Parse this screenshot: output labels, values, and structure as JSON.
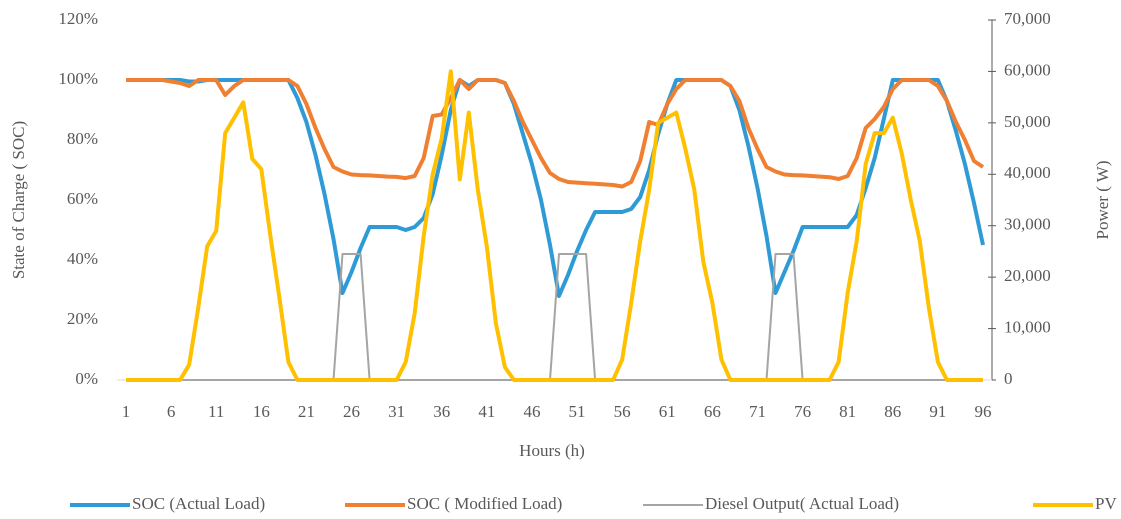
{
  "chart_data": {
    "type": "line",
    "x_label": "Hours (h)",
    "y_label": "State of  Charge ( SOC)",
    "y2_label": "Power ( W)",
    "x": [
      1,
      2,
      3,
      4,
      5,
      6,
      7,
      8,
      9,
      10,
      11,
      12,
      13,
      14,
      15,
      16,
      17,
      18,
      19,
      20,
      21,
      22,
      23,
      24,
      25,
      26,
      27,
      28,
      29,
      30,
      31,
      32,
      33,
      34,
      35,
      36,
      37,
      38,
      39,
      40,
      41,
      42,
      43,
      44,
      45,
      46,
      47,
      48,
      49,
      50,
      51,
      52,
      53,
      54,
      55,
      56,
      57,
      58,
      59,
      60,
      61,
      62,
      63,
      64,
      65,
      66,
      67,
      68,
      69,
      70,
      71,
      72,
      73,
      74,
      75,
      76,
      77,
      78,
      79,
      80,
      81,
      82,
      83,
      84,
      85,
      86,
      87,
      88,
      89,
      90,
      91,
      92,
      93,
      94,
      95,
      96
    ],
    "xlim": [
      0,
      97
    ],
    "xticks": [
      1,
      6,
      11,
      16,
      21,
      26,
      31,
      36,
      41,
      46,
      51,
      56,
      61,
      66,
      71,
      76,
      81,
      86,
      91,
      96
    ],
    "ylim": [
      0,
      120
    ],
    "yticks": [
      {
        "value": 0,
        "label": "0%"
      },
      {
        "value": 20,
        "label": "20%"
      },
      {
        "value": 40,
        "label": "40%"
      },
      {
        "value": 60,
        "label": "60%"
      },
      {
        "value": 80,
        "label": "80%"
      },
      {
        "value": 100,
        "label": "100%"
      },
      {
        "value": 120,
        "label": "120%"
      }
    ],
    "y2lim": [
      0,
      70000
    ],
    "y2ticks": [
      0,
      {
        "value": 10000,
        "label": "10,000"
      },
      {
        "value": 20000,
        "label": "20,000"
      },
      {
        "value": 30000,
        "label": "30,000"
      },
      {
        "value": 40000,
        "label": "40,000"
      },
      {
        "value": 50000,
        "label": "50,000"
      },
      {
        "value": 60000,
        "label": "60,000"
      },
      {
        "value": 70000,
        "label": "70,000"
      }
    ],
    "grid": false,
    "legend": "bottom",
    "series": [
      {
        "name": "SOC (Actual Load)",
        "color": "#2e9bd6",
        "axis": "y",
        "values": [
          100,
          100,
          100,
          100,
          100,
          100,
          100,
          99.5,
          99.5,
          100,
          100,
          100,
          100,
          100,
          100,
          100,
          100,
          100,
          100,
          94,
          86,
          75,
          62,
          47,
          29,
          36,
          44,
          51,
          51,
          51,
          51,
          50,
          51,
          54,
          62,
          75,
          90,
          100,
          98,
          100,
          100,
          100,
          99,
          92,
          82,
          72,
          60,
          45,
          28,
          35,
          43,
          50,
          56,
          56,
          56,
          56,
          57,
          61,
          70,
          82,
          92,
          100,
          100,
          100,
          100,
          100,
          100,
          98,
          90,
          78,
          64,
          48,
          29,
          36,
          43,
          51,
          51,
          51,
          51,
          51,
          51,
          55,
          64,
          74,
          87,
          100,
          100,
          100,
          100,
          100,
          100,
          93,
          83,
          72,
          59,
          45
        ]
      },
      {
        "name": "SOC ( Modified Load)",
        "color": "#f07f32",
        "axis": "y",
        "values": [
          100,
          100,
          100,
          100,
          100,
          99.5,
          99,
          98,
          100,
          100,
          100,
          95,
          98,
          100,
          100,
          100,
          100,
          100,
          100,
          98,
          92,
          84,
          77,
          71,
          69.5,
          68.5,
          68.3,
          68.2,
          68,
          67.8,
          67.7,
          67.3,
          68,
          74,
          88,
          88.5,
          94,
          100,
          97,
          100,
          100,
          100,
          99,
          93,
          86,
          80,
          74,
          69,
          67,
          66,
          65.8,
          65.6,
          65.4,
          65.2,
          65,
          64.5,
          66,
          73,
          86,
          85,
          92,
          97,
          100,
          100,
          100,
          100,
          100,
          98,
          93,
          84,
          77,
          71,
          69.5,
          68.5,
          68.3,
          68.2,
          68,
          67.8,
          67.6,
          67,
          68,
          74,
          84,
          87,
          91,
          97,
          100,
          100,
          100,
          100,
          98,
          93,
          86,
          80,
          73,
          71
        ]
      },
      {
        "name": "Diesel  Output( Actual Load)",
        "color": "#a5a5a5",
        "axis": "y2",
        "values": [
          0,
          0,
          0,
          0,
          0,
          0,
          0,
          0,
          0,
          0,
          0,
          0,
          0,
          0,
          0,
          0,
          0,
          0,
          0,
          0,
          0,
          0,
          0,
          0,
          24500,
          24500,
          24500,
          0,
          0,
          0,
          0,
          0,
          0,
          0,
          0,
          0,
          0,
          0,
          0,
          0,
          0,
          0,
          0,
          0,
          0,
          0,
          0,
          0,
          24500,
          24500,
          24500,
          24500,
          0,
          0,
          0,
          0,
          0,
          0,
          0,
          0,
          0,
          0,
          0,
          0,
          0,
          0,
          0,
          0,
          0,
          0,
          0,
          0,
          24500,
          24500,
          24500,
          0,
          0,
          0,
          0,
          0,
          0,
          0,
          0,
          0,
          0,
          0,
          0,
          0,
          0,
          0,
          0,
          0,
          0,
          0,
          0,
          0
        ]
      },
      {
        "name": "PV",
        "color": "#ffc000",
        "axis": "y2",
        "values": [
          0,
          0,
          0,
          0,
          0,
          0,
          0,
          3000,
          14000,
          26000,
          29000,
          48000,
          51000,
          54000,
          43000,
          41000,
          28000,
          16000,
          3500,
          0,
          0,
          0,
          0,
          0,
          0,
          0,
          0,
          0,
          0,
          0,
          0,
          3500,
          13000,
          28000,
          40000,
          47000,
          60000,
          39000,
          52000,
          37000,
          26000,
          11000,
          2500,
          0,
          0,
          0,
          0,
          0,
          0,
          0,
          0,
          0,
          0,
          0,
          0,
          4000,
          15000,
          27000,
          37000,
          50000,
          51000,
          52000,
          45000,
          37000,
          23000,
          15000,
          4000,
          0,
          0,
          0,
          0,
          0,
          0,
          0,
          0,
          0,
          0,
          0,
          0,
          3500,
          17000,
          27000,
          42000,
          48000,
          48000,
          51000,
          44000,
          35000,
          27000,
          14000,
          3500,
          0,
          0,
          0,
          0,
          0
        ]
      }
    ]
  }
}
